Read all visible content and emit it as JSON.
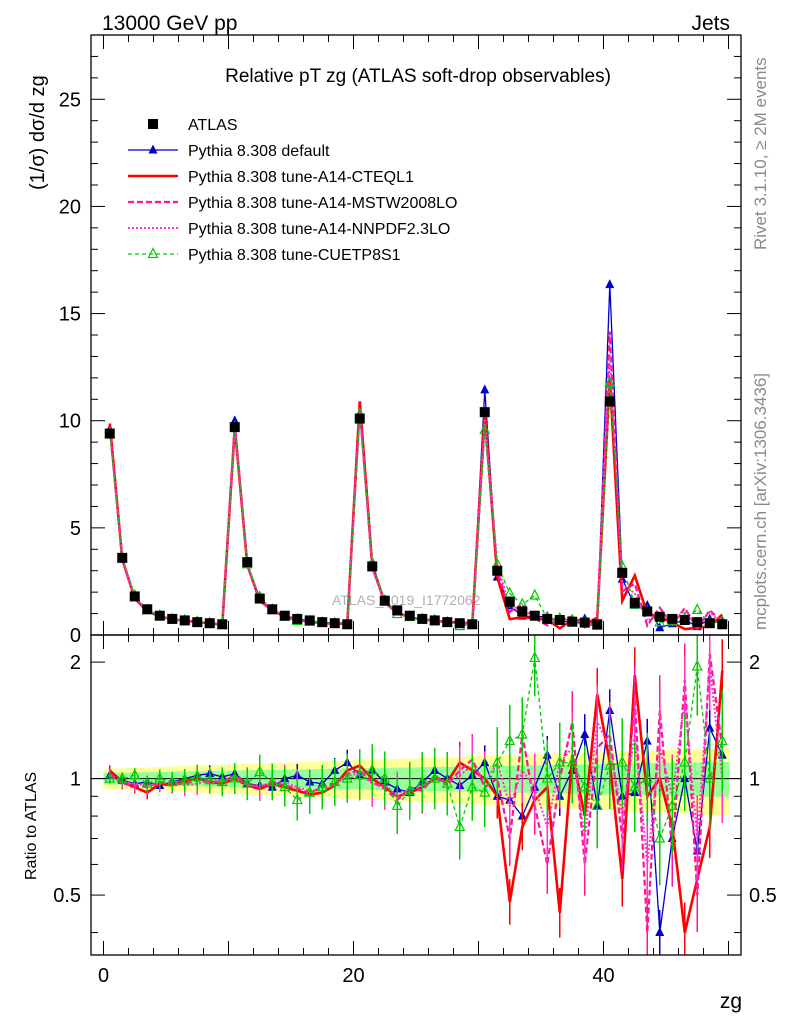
{
  "header": {
    "left": "13000 GeV pp",
    "right": "Jets"
  },
  "side_labels": {
    "rivet": "Rivet 3.1.10, ≥ 2M events",
    "mcplots": "mcplots.cern.ch [arXiv:1306.3436]"
  },
  "watermark": "ATLAS_2019_I1772062",
  "chart_data": {
    "type": "scatter",
    "title": "Relative pT zg (ATLAS soft-drop observables)",
    "xlabel": "zg",
    "ylabel": "(1/σ) dσ/d zg",
    "ratio_ylabel": "Ratio to ATLAS",
    "xlim": [
      -1,
      51
    ],
    "ylim": [
      0,
      28
    ],
    "ratio_ylim": [
      0.35,
      2.35
    ],
    "x_ticks": [
      0,
      20,
      40
    ],
    "y_ticks": [
      0,
      5,
      10,
      15,
      20,
      25
    ],
    "ratio_ticks": [
      0.5,
      1,
      2
    ],
    "grid": false,
    "legend_position": "top-left",
    "x": [
      0.5,
      1.5,
      2.5,
      3.5,
      4.5,
      5.5,
      6.5,
      7.5,
      8.5,
      9.5,
      10.5,
      11.5,
      12.5,
      13.5,
      14.5,
      15.5,
      16.5,
      17.5,
      18.5,
      19.5,
      20.5,
      21.5,
      22.5,
      23.5,
      24.5,
      25.5,
      26.5,
      27.5,
      28.5,
      29.5,
      30.5,
      31.5,
      32.5,
      33.5,
      34.5,
      35.5,
      36.5,
      37.5,
      38.5,
      39.5,
      40.5,
      41.5,
      42.5,
      43.5,
      44.5,
      45.5,
      46.5,
      47.5,
      48.5,
      49.5
    ],
    "series": [
      {
        "name": "ATLAS",
        "color": "#000000",
        "marker": "square",
        "values": [
          9.4,
          3.6,
          1.8,
          1.2,
          0.9,
          0.75,
          0.68,
          0.6,
          0.55,
          0.5,
          9.7,
          3.4,
          1.7,
          1.2,
          0.9,
          0.75,
          0.68,
          0.6,
          0.55,
          0.5,
          10.1,
          3.2,
          1.6,
          1.15,
          0.9,
          0.75,
          0.68,
          0.6,
          0.55,
          0.5,
          10.4,
          3.0,
          1.55,
          1.1,
          0.9,
          0.75,
          0.7,
          0.62,
          0.58,
          0.5,
          10.9,
          2.9,
          1.5,
          1.1,
          0.85,
          0.75,
          0.7,
          0.6,
          0.55,
          0.5
        ]
      },
      {
        "name": "Pythia 8.308 default",
        "color": "#0000cc",
        "marker": "triangle",
        "ratio": [
          1.02,
          0.99,
          0.97,
          0.98,
          0.96,
          0.98,
          1.0,
          1.02,
          1.03,
          1.01,
          1.03,
          0.97,
          0.96,
          0.95,
          1.0,
          1.02,
          0.98,
          0.97,
          1.05,
          1.1,
          1.02,
          1.05,
          0.98,
          0.94,
          0.92,
          0.98,
          1.05,
          1.0,
          0.96,
          1.02,
          1.1,
          0.9,
          0.88,
          0.8,
          0.95,
          1.15,
          0.9,
          1.05,
          1.3,
          0.85,
          1.5,
          0.9,
          0.92,
          1.25,
          0.4,
          0.7,
          1.0,
          0.65,
          1.35,
          1.15
        ]
      },
      {
        "name": "Pythia 8.308 tune-A14-CTEQL1",
        "color": "#ff0000",
        "marker": "none",
        "ratio": [
          1.05,
          0.98,
          0.95,
          0.92,
          0.97,
          0.96,
          0.99,
          1.0,
          0.98,
          0.97,
          1.0,
          0.96,
          0.94,
          0.97,
          0.95,
          0.93,
          0.91,
          0.92,
          0.96,
          1.05,
          1.08,
          1.0,
          0.95,
          0.9,
          0.92,
          0.95,
          1.0,
          0.98,
          1.1,
          1.05,
          1.0,
          0.9,
          0.48,
          0.75,
          0.88,
          0.95,
          0.45,
          1.15,
          0.8,
          1.65,
          1.1,
          0.55,
          1.85,
          0.9,
          1.0,
          0.75,
          0.4,
          0.55,
          0.75,
          1.9
        ]
      },
      {
        "name": "Pythia 8.308 tune-A14-MSTW2008LO",
        "color": "#ff1493",
        "marker": "none",
        "ratio": [
          1.03,
          0.97,
          0.96,
          0.95,
          0.98,
          0.97,
          0.97,
          0.99,
          0.98,
          0.98,
          1.02,
          0.97,
          0.95,
          0.98,
          0.96,
          0.94,
          0.92,
          0.95,
          0.97,
          1.03,
          1.05,
          0.98,
          0.94,
          0.88,
          0.95,
          0.93,
          1.02,
          0.96,
          1.05,
          1.12,
          0.95,
          1.0,
          0.7,
          1.3,
          0.85,
          0.6,
          1.0,
          1.4,
          0.6,
          1.2,
          1.3,
          0.7,
          1.6,
          0.4,
          1.5,
          0.65,
          1.8,
          0.5,
          2.1,
          1.2
        ]
      },
      {
        "name": "Pythia 8.308 tune-A14-NNPDF2.3LO",
        "color": "#ff33cc",
        "marker": "none",
        "ratio": [
          1.02,
          0.98,
          0.97,
          0.96,
          0.97,
          0.98,
          0.96,
          0.97,
          0.99,
          0.99,
          1.01,
          0.96,
          0.96,
          0.97,
          0.98,
          0.95,
          0.93,
          0.94,
          0.96,
          1.02,
          1.03,
          0.97,
          0.96,
          0.9,
          0.93,
          0.96,
          1.0,
          0.98,
          1.02,
          1.08,
          0.98,
          1.1,
          0.85,
          1.05,
          0.95,
          0.75,
          1.1,
          1.2,
          0.7,
          1.4,
          1.2,
          0.8,
          1.3,
          0.6,
          1.2,
          0.9,
          1.6,
          0.7,
          1.95,
          1.0
        ]
      },
      {
        "name": "Pythia 8.308 tune-CUETP8S1",
        "color": "#00cc00",
        "marker": "open-triangle",
        "ratio": [
          1.0,
          1.0,
          1.02,
          0.97,
          1.0,
          0.98,
          0.99,
          1.01,
          0.99,
          0.98,
          1.0,
          0.97,
          1.04,
          0.98,
          0.95,
          0.88,
          0.92,
          0.95,
          0.98,
          1.0,
          1.02,
          1.05,
          1.0,
          0.85,
          0.93,
          0.98,
          1.0,
          0.97,
          0.75,
          0.95,
          0.92,
          1.1,
          1.25,
          1.3,
          2.05,
          1.0,
          1.1,
          1.1,
          0.95,
          0.85,
          1.08,
          1.1,
          0.95,
          1.0,
          0.7,
          0.85,
          1.1,
          1.95,
          1.0,
          1.25
        ]
      }
    ]
  }
}
